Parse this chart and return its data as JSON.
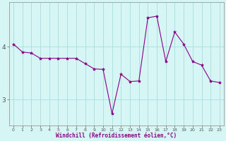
{
  "x": [
    0,
    1,
    2,
    3,
    4,
    5,
    6,
    7,
    8,
    9,
    10,
    11,
    12,
    13,
    14,
    15,
    16,
    17,
    18,
    19,
    20,
    21,
    22,
    23
  ],
  "y": [
    4.05,
    3.9,
    3.88,
    3.78,
    3.78,
    3.78,
    3.78,
    3.78,
    3.68,
    3.58,
    3.57,
    2.73,
    3.48,
    3.34,
    3.35,
    4.55,
    4.58,
    3.72,
    4.28,
    4.05,
    3.72,
    3.65,
    3.35,
    3.32
  ],
  "line_color": "#880088",
  "marker_size": 3,
  "bg_color": "#d6f5f5",
  "grid_color": "#aadddd",
  "axis_color": "#880088",
  "tick_color": "#555555",
  "xlabel": "Windchill (Refroidissement éolien,°C)",
  "yticks": [
    3,
    4
  ],
  "xticks": [
    0,
    1,
    2,
    3,
    4,
    5,
    6,
    7,
    8,
    9,
    10,
    11,
    12,
    13,
    14,
    15,
    16,
    17,
    18,
    19,
    20,
    21,
    22,
    23
  ],
  "xlim": [
    -0.5,
    23.5
  ],
  "ylim": [
    2.5,
    4.85
  ]
}
